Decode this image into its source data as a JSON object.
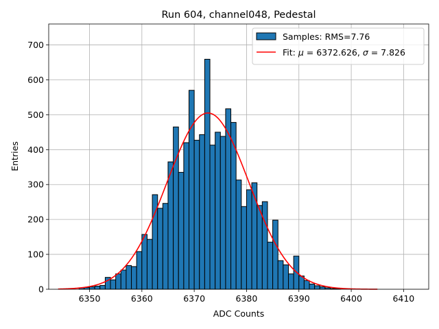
{
  "chart_data": {
    "type": "bar",
    "title": "Run 604, channel048, Pedestal",
    "xlabel": "ADC Counts",
    "ylabel": "Entries",
    "xlim": [
      6342.2,
      6414.8
    ],
    "ylim": [
      0,
      760
    ],
    "xticks": [
      6350,
      6360,
      6370,
      6380,
      6390,
      6400,
      6410
    ],
    "yticks": [
      0,
      100,
      200,
      300,
      400,
      500,
      600,
      700
    ],
    "grid": true,
    "legend_position": "top-right",
    "bar_color": "#1f77b4",
    "fit_color": "#ff0000",
    "histogram": {
      "name": "Samples: RMS=7.76",
      "bin_width": 1,
      "bin_starts": [
        6348,
        6349,
        6350,
        6351,
        6352,
        6353,
        6354,
        6355,
        6356,
        6357,
        6358,
        6359,
        6360,
        6361,
        6362,
        6363,
        6364,
        6365,
        6366,
        6367,
        6368,
        6369,
        6370,
        6371,
        6372,
        6373,
        6374,
        6375,
        6376,
        6377,
        6378,
        6379,
        6380,
        6381,
        6382,
        6383,
        6384,
        6385,
        6386,
        6387,
        6388,
        6389,
        6390,
        6391,
        6392,
        6393,
        6394,
        6395,
        6396,
        6397
      ],
      "counts": [
        4,
        5,
        7,
        9,
        11,
        34,
        27,
        44,
        55,
        68,
        65,
        108,
        157,
        143,
        271,
        232,
        246,
        365,
        465,
        335,
        420,
        570,
        427,
        443,
        659,
        413,
        450,
        438,
        517,
        478,
        313,
        237,
        285,
        305,
        240,
        251,
        135,
        198,
        82,
        70,
        44,
        95,
        38,
        25,
        15,
        10,
        7,
        4,
        2,
        1
      ]
    },
    "fit": {
      "name": "Fit: $\\mu$ = 6372.626, $\\sigma$ = 7.826",
      "label_prefix": "Fit: ",
      "mu_symbol": "μ",
      "mu_text": " = 6372.626, ",
      "sigma_symbol": "σ",
      "sigma_text": " = 7.826",
      "mu": 6372.626,
      "sigma": 7.826,
      "amplitude": 505,
      "x_range": [
        6344,
        6405
      ]
    }
  }
}
